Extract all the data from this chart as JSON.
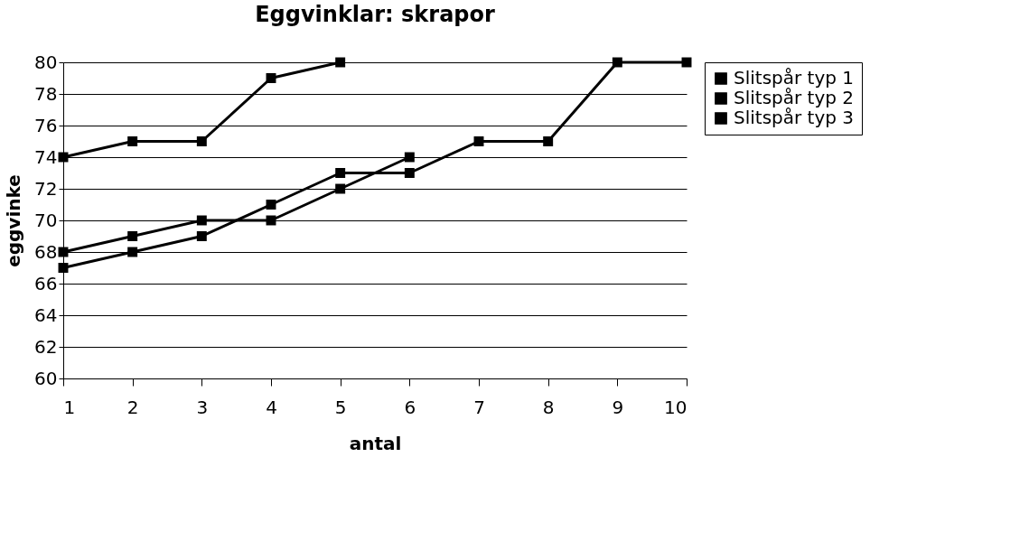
{
  "chart_data": {
    "type": "line",
    "title": "Eggvinklar: skrapor",
    "xlabel": "antal",
    "ylabel": "eggvinke",
    "x": [
      1,
      2,
      3,
      4,
      5,
      6,
      7,
      8,
      9,
      10
    ],
    "series": [
      {
        "name": "Slitspår typ 1",
        "color": "#000000",
        "values": [
          68,
          69,
          70,
          70,
          72,
          74,
          null,
          null,
          null,
          null
        ]
      },
      {
        "name": "Slitspår typ 2",
        "color": "#000000",
        "values": [
          67,
          68,
          69,
          71,
          73,
          73,
          75,
          75,
          80,
          80
        ]
      },
      {
        "name": "Slitspår typ 3",
        "color": "#000000",
        "values": [
          74,
          75,
          75,
          79,
          80,
          null,
          null,
          null,
          null,
          null
        ]
      }
    ],
    "xlim": [
      1,
      10
    ],
    "xticks": [
      1,
      2,
      3,
      4,
      5,
      6,
      7,
      8,
      9,
      10
    ],
    "ylim": [
      60,
      80
    ],
    "yticks": [
      60,
      62,
      64,
      66,
      68,
      70,
      72,
      74,
      76,
      78,
      80
    ],
    "grid": "y",
    "legend": "right",
    "marker": "square",
    "line_style": "solid"
  }
}
